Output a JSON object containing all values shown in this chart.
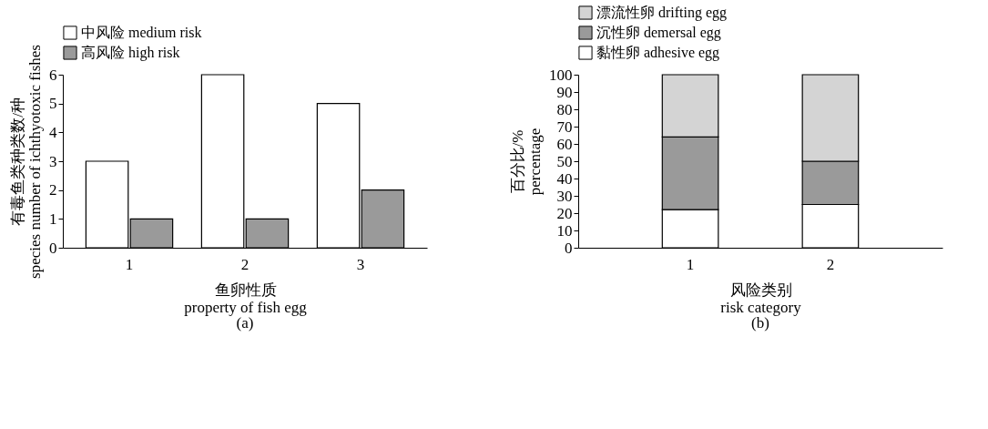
{
  "chart_data": [
    {
      "type": "bar",
      "categories": [
        "1",
        "2",
        "3"
      ],
      "xlabel": "鱼卵性质\nproperty of fish egg",
      "ylabel": "有毒鱼类种类数/种\nspecies number of ichthyotoxic fishes",
      "ylim": [
        0,
        6
      ],
      "yticks": [
        0,
        1,
        2,
        3,
        4,
        5,
        6
      ],
      "grid": false,
      "legend": "top",
      "annotations": [
        "(a)"
      ],
      "series": [
        {
          "name": "中风险    medium risk",
          "color": "#ffffff",
          "values": [
            3,
            6,
            5
          ]
        },
        {
          "name": "高风险    high risk",
          "color": "#9a9a9a",
          "values": [
            1,
            1,
            2
          ]
        }
      ]
    },
    {
      "type": "bar",
      "stacked": true,
      "categories": [
        "1",
        "2"
      ],
      "xlabel": "风险类别\nrisk category",
      "ylabel": "百分比/%\npercentage",
      "ylim": [
        0,
        100
      ],
      "yticks": [
        0,
        10,
        20,
        30,
        40,
        50,
        60,
        70,
        80,
        90,
        100
      ],
      "grid": false,
      "legend": "top",
      "annotations": [
        "(b)"
      ],
      "series": [
        {
          "name": "黏性卵 adhesive egg",
          "color": "#ffffff",
          "values": [
            22,
            25
          ]
        },
        {
          "name": "沉性卵 demersal egg",
          "color": "#9a9a9a",
          "values": [
            42,
            25
          ]
        },
        {
          "name": "漂流性卵 drifting egg",
          "color": "#d4d4d4",
          "values": [
            36,
            50
          ]
        }
      ]
    }
  ]
}
